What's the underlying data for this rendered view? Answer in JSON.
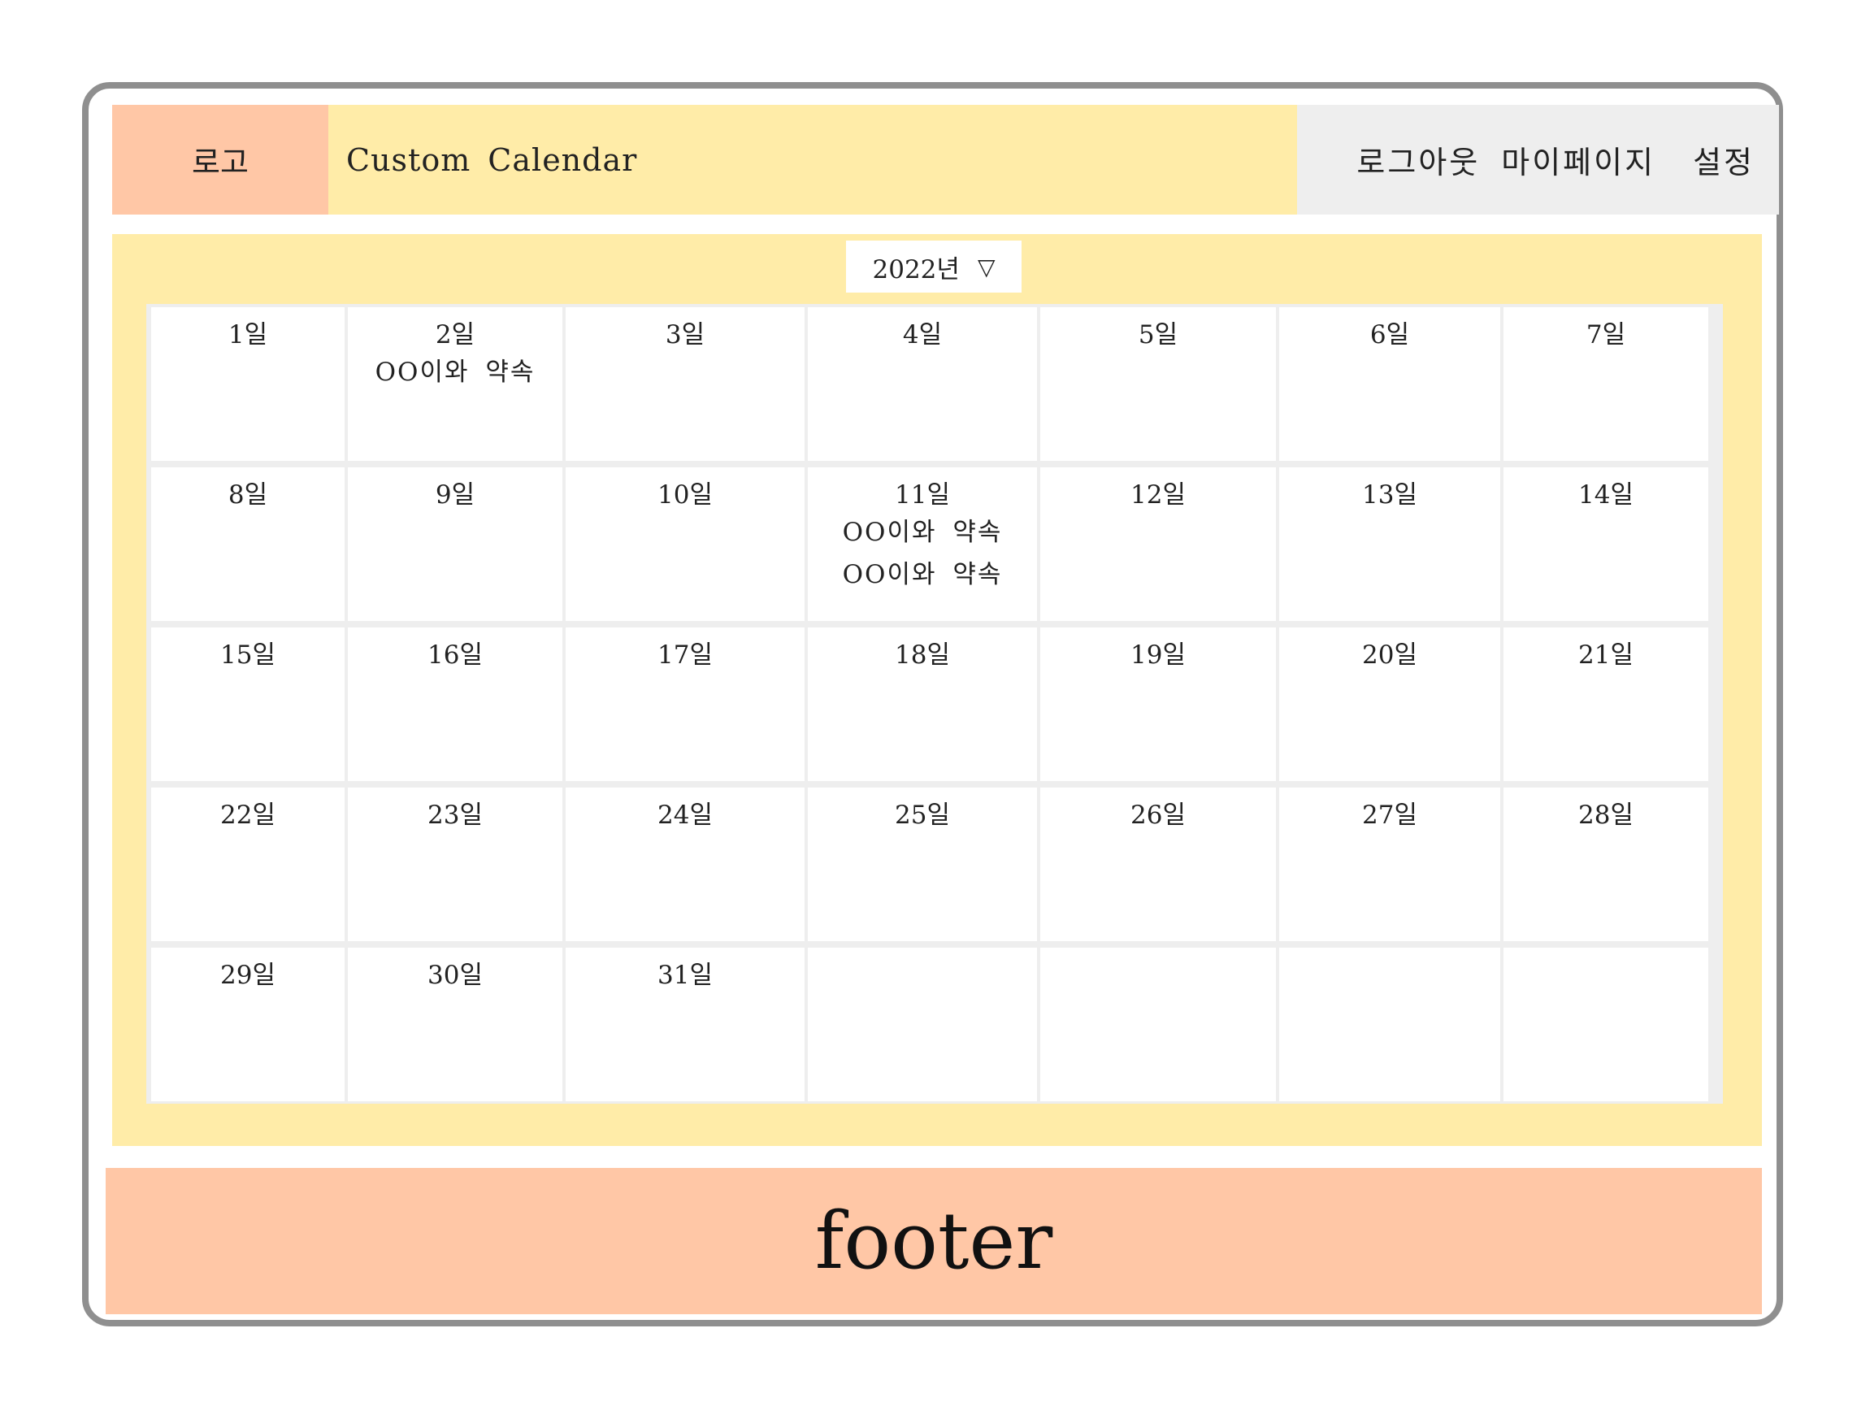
{
  "header": {
    "logo": "로고",
    "title": "Custom Calendar",
    "nav": {
      "logout": "로그아웃",
      "mypage": "마이페이지",
      "settings": "설정"
    }
  },
  "calendar": {
    "year_select": {
      "label": "2022년",
      "caret": "▽"
    },
    "weeks": [
      [
        {
          "date": "1일",
          "events": []
        },
        {
          "date": "2일",
          "events": [
            "OO이와 약속"
          ]
        },
        {
          "date": "3일",
          "events": []
        },
        {
          "date": "4일",
          "events": []
        },
        {
          "date": "5일",
          "events": []
        },
        {
          "date": "6일",
          "events": []
        },
        {
          "date": "7일",
          "events": []
        }
      ],
      [
        {
          "date": "8일",
          "events": []
        },
        {
          "date": "9일",
          "events": []
        },
        {
          "date": "10일",
          "events": []
        },
        {
          "date": "11일",
          "events": [
            "OO이와 약속",
            "OO이와 약속"
          ]
        },
        {
          "date": "12일",
          "events": []
        },
        {
          "date": "13일",
          "events": []
        },
        {
          "date": "14일",
          "events": []
        }
      ],
      [
        {
          "date": "15일",
          "events": []
        },
        {
          "date": "16일",
          "events": []
        },
        {
          "date": "17일",
          "events": []
        },
        {
          "date": "18일",
          "events": []
        },
        {
          "date": "19일",
          "events": []
        },
        {
          "date": "20일",
          "events": []
        },
        {
          "date": "21일",
          "events": []
        }
      ],
      [
        {
          "date": "22일",
          "events": []
        },
        {
          "date": "23일",
          "events": []
        },
        {
          "date": "24일",
          "events": []
        },
        {
          "date": "25일",
          "events": []
        },
        {
          "date": "26일",
          "events": []
        },
        {
          "date": "27일",
          "events": []
        },
        {
          "date": "28일",
          "events": []
        }
      ],
      [
        {
          "date": "29일",
          "events": []
        },
        {
          "date": "30일",
          "events": []
        },
        {
          "date": "31일",
          "events": []
        },
        {
          "date": "",
          "events": []
        },
        {
          "date": "",
          "events": []
        },
        {
          "date": "",
          "events": []
        },
        {
          "date": "",
          "events": []
        }
      ]
    ]
  },
  "footer": {
    "label": "footer"
  },
  "colors": {
    "peach": "#ffc7a6",
    "yellow": "#ffeca8",
    "gray": "#eeeeee",
    "border": "#8f8f8f"
  }
}
